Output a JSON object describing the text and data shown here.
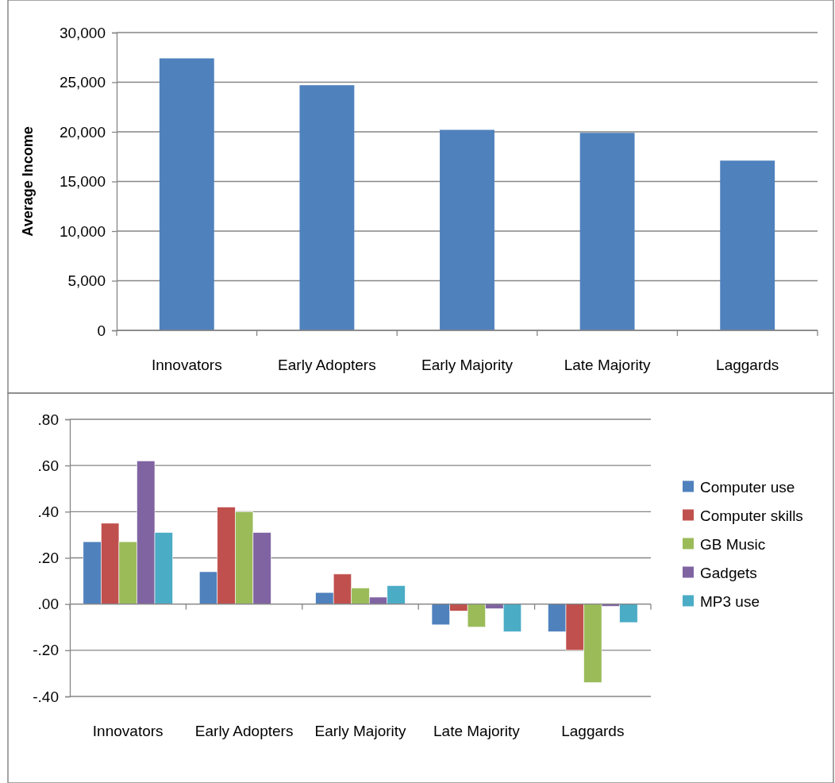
{
  "chart_data": [
    {
      "type": "bar",
      "ylabel": "Average Income",
      "categories": [
        "Innovators",
        "Early Adopters",
        "Early Majority",
        "Late Majority",
        "Laggards"
      ],
      "values": [
        27400,
        24700,
        20200,
        19900,
        17100
      ],
      "color": "#4f81bd",
      "ylim": [
        0,
        30000
      ],
      "yticks": [
        0,
        {
          "value": 5000,
          "label": "5,000"
        },
        {
          "value": 10000,
          "label": "10,000"
        },
        {
          "value": 15000,
          "label": "15,000"
        },
        {
          "value": 20000,
          "label": "20,000"
        },
        {
          "value": 25000,
          "label": "25,000"
        },
        {
          "value": 30000,
          "label": "30,000"
        }
      ],
      "grid": "y",
      "legend": false
    },
    {
      "type": "bar",
      "categories": [
        "Innovators",
        "Early Adopters",
        "Early Majority",
        "Late Majority",
        "Laggards"
      ],
      "series": [
        {
          "name": "Computer use",
          "color": "#4f81bd",
          "values": [
            0.27,
            0.14,
            0.05,
            -0.09,
            -0.12
          ]
        },
        {
          "name": "Computer skills",
          "color": "#c0504d",
          "values": [
            0.35,
            0.42,
            0.13,
            -0.03,
            -0.2
          ]
        },
        {
          "name": "GB Music",
          "color": "#9bbb59",
          "values": [
            0.27,
            0.4,
            0.07,
            -0.1,
            -0.34
          ]
        },
        {
          "name": "Gadgets",
          "color": "#8064a2",
          "values": [
            0.62,
            0.31,
            0.03,
            -0.02,
            -0.01
          ]
        },
        {
          "name": "MP3 use",
          "color": "#4bacc6",
          "values": [
            0.31,
            0,
            0.08,
            -0.12,
            -0.08
          ]
        }
      ],
      "ylim": [
        -0.4,
        0.8
      ],
      "yticks": [
        {
          "value": -0.4,
          "label": "-.40"
        },
        {
          "value": -0.2,
          "label": "-.20"
        },
        {
          "value": 0,
          "label": ".00"
        },
        {
          "value": 0.2,
          "label": ".20"
        },
        {
          "value": 0.4,
          "label": ".40"
        },
        {
          "value": 0.6,
          "label": ".60"
        },
        {
          "value": 0.8,
          "label": ".80"
        }
      ],
      "grid": "y",
      "legend": "right"
    }
  ]
}
